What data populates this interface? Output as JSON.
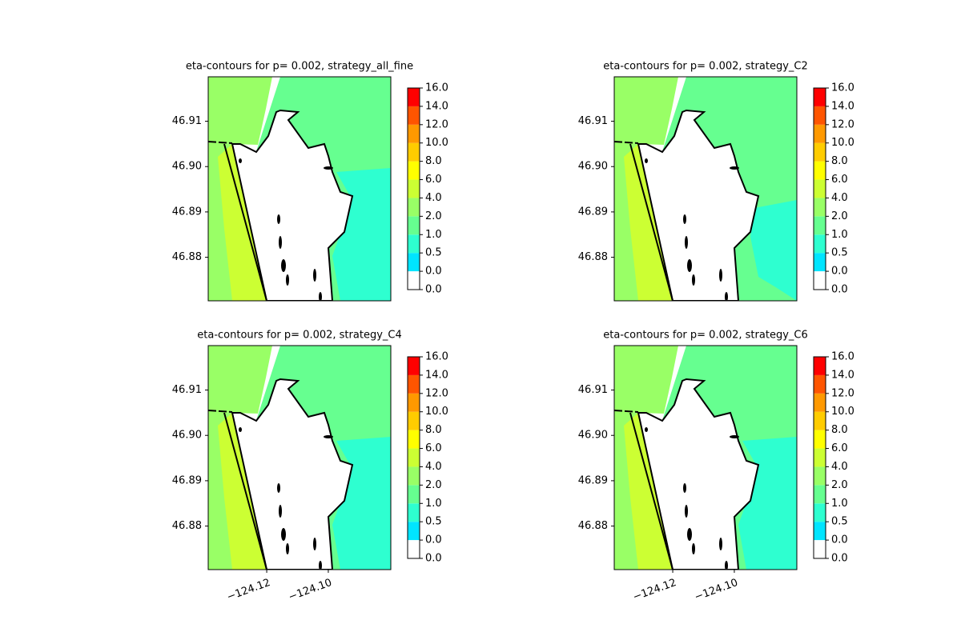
{
  "chart_data": [
    {
      "type": "contour",
      "title": "eta-contours for p= 0.002, strategy_all_fine",
      "xlim": [
        -124.139,
        -124.0797
      ],
      "ylim": [
        46.8704,
        46.9198
      ],
      "yticks": [
        46.88,
        46.89,
        {
          "value": 46.9,
          "label": "46.90"
        },
        46.91
      ],
      "levels": [
        {
          "value": 0,
          "label": "0.0"
        },
        {
          "value": 0,
          "label": "0.0"
        },
        0.5,
        {
          "value": 1,
          "label": "1.0"
        },
        {
          "value": 2,
          "label": "2.0"
        },
        {
          "value": 4,
          "label": "4.0"
        },
        {
          "value": 6,
          "label": "6.0"
        },
        {
          "value": 8,
          "label": "8.0"
        },
        {
          "value": 10,
          "label": "10.0"
        },
        {
          "value": 12,
          "label": "12.0"
        },
        {
          "value": 14,
          "label": "14.0"
        },
        {
          "value": 16,
          "label": "16.0"
        }
      ],
      "colors": [
        "#ffffff",
        "#00e5ff",
        "#2effd0",
        "#66ff90",
        "#99ff66",
        "#ccff33",
        "#ffff00",
        "#ffcc00",
        "#ff9900",
        "#ff5500",
        "#ff0000"
      ]
    },
    {
      "type": "contour",
      "title": "eta-contours for p= 0.002, strategy_C2",
      "xlim": [
        -124.139,
        -124.0797
      ],
      "ylim": [
        46.8704,
        46.9198
      ],
      "yticks": [
        46.88,
        46.89,
        {
          "value": 46.9,
          "label": "46.90"
        },
        46.91
      ],
      "levels": [
        {
          "value": 0,
          "label": "0.0"
        },
        {
          "value": 0,
          "label": "0.0"
        },
        0.5,
        {
          "value": 1,
          "label": "1.0"
        },
        {
          "value": 2,
          "label": "2.0"
        },
        {
          "value": 4,
          "label": "4.0"
        },
        {
          "value": 6,
          "label": "6.0"
        },
        {
          "value": 8,
          "label": "8.0"
        },
        {
          "value": 10,
          "label": "10.0"
        },
        {
          "value": 12,
          "label": "12.0"
        },
        {
          "value": 14,
          "label": "14.0"
        },
        {
          "value": 16,
          "label": "16.0"
        }
      ],
      "colors": [
        "#ffffff",
        "#00e5ff",
        "#2effd0",
        "#66ff90",
        "#99ff66",
        "#ccff33",
        "#ffff00",
        "#ffcc00",
        "#ff9900",
        "#ff5500",
        "#ff0000"
      ]
    },
    {
      "type": "contour",
      "title": "eta-contours for p= 0.002, strategy_C4",
      "xlim": [
        -124.139,
        -124.0797
      ],
      "ylim": [
        46.8704,
        46.9198
      ],
      "xticks": [
        {
          "value": -124.12,
          "label": "−124.12"
        },
        {
          "value": -124.1,
          "label": "−124.10"
        }
      ],
      "yticks": [
        46.88,
        46.89,
        {
          "value": 46.9,
          "label": "46.90"
        },
        46.91
      ],
      "levels": [
        {
          "value": 0,
          "label": "0.0"
        },
        {
          "value": 0,
          "label": "0.0"
        },
        0.5,
        {
          "value": 1,
          "label": "1.0"
        },
        {
          "value": 2,
          "label": "2.0"
        },
        {
          "value": 4,
          "label": "4.0"
        },
        {
          "value": 6,
          "label": "6.0"
        },
        {
          "value": 8,
          "label": "8.0"
        },
        {
          "value": 10,
          "label": "10.0"
        },
        {
          "value": 12,
          "label": "12.0"
        },
        {
          "value": 14,
          "label": "14.0"
        },
        {
          "value": 16,
          "label": "16.0"
        }
      ],
      "colors": [
        "#ffffff",
        "#00e5ff",
        "#2effd0",
        "#66ff90",
        "#99ff66",
        "#ccff33",
        "#ffff00",
        "#ffcc00",
        "#ff9900",
        "#ff5500",
        "#ff0000"
      ]
    },
    {
      "type": "contour",
      "title": "eta-contours for p= 0.002, strategy_C6",
      "xlim": [
        -124.139,
        -124.0797
      ],
      "ylim": [
        46.8704,
        46.9198
      ],
      "xticks": [
        {
          "value": -124.12,
          "label": "−124.12"
        },
        {
          "value": -124.1,
          "label": "−124.10"
        }
      ],
      "yticks": [
        46.88,
        46.89,
        {
          "value": 46.9,
          "label": "46.90"
        },
        46.91
      ],
      "levels": [
        {
          "value": 0,
          "label": "0.0"
        },
        {
          "value": 0,
          "label": "0.0"
        },
        0.5,
        {
          "value": 1,
          "label": "1.0"
        },
        {
          "value": 2,
          "label": "2.0"
        },
        {
          "value": 4,
          "label": "4.0"
        },
        {
          "value": 6,
          "label": "6.0"
        },
        {
          "value": 8,
          "label": "8.0"
        },
        {
          "value": 10,
          "label": "10.0"
        },
        {
          "value": 12,
          "label": "12.0"
        },
        {
          "value": 14,
          "label": "14.0"
        },
        {
          "value": 16,
          "label": "16.0"
        }
      ],
      "colors": [
        "#ffffff",
        "#00e5ff",
        "#2effd0",
        "#66ff90",
        "#99ff66",
        "#ccff33",
        "#ffff00",
        "#ffcc00",
        "#ff9900",
        "#ff5500",
        "#ff0000"
      ]
    }
  ]
}
